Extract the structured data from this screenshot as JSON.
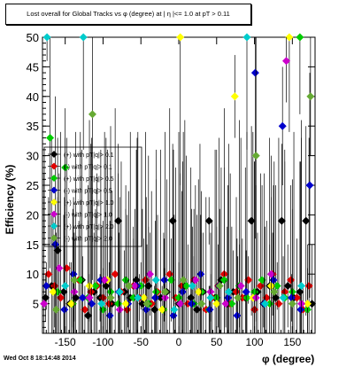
{
  "title": "Lost overall for Global Tracks vs φ (degree) at | η |<= 1.0 at pT > 0.11",
  "datestamp": "Wed Oct  8 18:14:48 2014",
  "chart_data": {
    "type": "scatter",
    "xlabel": "φ (degree)",
    "ylabel": "Efficiency (%)",
    "xlim": [
      -180,
      180
    ],
    "ylim": [
      0,
      50
    ],
    "x_ticks": [
      -150,
      -100,
      -50,
      0,
      50,
      100,
      150
    ],
    "y_ticks": [
      5,
      10,
      15,
      20,
      25,
      30,
      35,
      40,
      45,
      50
    ],
    "grid": false,
    "legend_position": "left-middle",
    "series": [
      {
        "name": "(+) with pT|q|> 0.1",
        "color": "#000000",
        "x": [
          -176,
          -168,
          -160,
          -152,
          -144,
          -136,
          -128,
          -120,
          -112,
          -104,
          -96,
          -88,
          -80,
          -72,
          -64,
          -56,
          -48,
          -40,
          -32,
          -24,
          -16,
          -8,
          0,
          8,
          16,
          24,
          32,
          40,
          48,
          56,
          64,
          72,
          80,
          88,
          96,
          104,
          112,
          120,
          128,
          136,
          144,
          152,
          160,
          168,
          176
        ],
        "values": [
          6,
          8,
          14,
          7,
          5,
          6,
          9,
          3,
          7,
          6,
          8,
          5,
          19,
          7,
          6,
          9,
          5,
          8,
          4,
          6,
          7,
          19,
          5,
          8,
          6,
          4,
          7,
          19,
          6,
          9,
          5,
          7,
          8,
          6,
          19,
          7,
          5,
          8,
          6,
          19,
          8,
          6,
          7,
          19,
          5
        ]
      },
      {
        "name": "(-) with pT|q|> 0.1",
        "color": "#e00000",
        "x": [
          -172,
          -164,
          -156,
          -148,
          -140,
          -132,
          -124,
          -116,
          -108,
          -100,
          -92,
          -84,
          -76,
          -68,
          -60,
          -52,
          -44,
          -36,
          -28,
          -20,
          -12,
          -4,
          4,
          12,
          20,
          28,
          36,
          44,
          52,
          60,
          68,
          76,
          84,
          92,
          100,
          108,
          116,
          124,
          132,
          140,
          148,
          156,
          164,
          172
        ],
        "values": [
          10,
          8,
          6,
          11,
          5,
          9,
          4,
          7,
          8,
          6,
          5,
          10,
          7,
          4,
          8,
          6,
          9,
          5,
          7,
          4,
          10,
          6,
          8,
          5,
          9,
          7,
          4,
          6,
          8,
          10,
          5,
          7,
          6,
          9,
          4,
          8,
          6,
          10,
          5,
          7,
          9,
          6,
          4,
          8
        ]
      },
      {
        "name": "(+) with pT|q|> 0.5",
        "color": "#00cc00",
        "x": [
          -170,
          -160,
          -150,
          -140,
          -130,
          -120,
          -110,
          -100,
          -90,
          -80,
          -70,
          -60,
          -50,
          -40,
          -30,
          -20,
          -10,
          0,
          10,
          20,
          30,
          40,
          50,
          60,
          70,
          80,
          90,
          100,
          110,
          120,
          130,
          140,
          150,
          160,
          170
        ],
        "values": [
          33,
          7,
          28,
          5,
          9,
          6,
          8,
          4,
          7,
          5,
          9,
          6,
          8,
          5,
          7,
          4,
          9,
          6,
          8,
          5,
          7,
          4,
          6,
          9,
          5,
          8,
          6,
          7,
          9,
          5,
          8,
          6,
          7,
          50,
          4
        ]
      },
      {
        "name": "(-) with pT|q|> 0.5",
        "color": "#0000cc",
        "x": [
          -175,
          -163,
          -151,
          -139,
          -127,
          -115,
          -103,
          -91,
          -79,
          -67,
          -55,
          -43,
          -31,
          -19,
          -7,
          5,
          17,
          29,
          41,
          53,
          65,
          77,
          89,
          101,
          113,
          125,
          137,
          149,
          161,
          173
        ],
        "values": [
          8,
          15,
          4,
          10,
          6,
          5,
          9,
          3,
          7,
          5,
          8,
          4,
          6,
          9,
          3,
          7,
          5,
          10,
          4,
          8,
          6,
          3,
          7,
          44,
          5,
          9,
          35,
          6,
          4,
          25
        ]
      },
      {
        "name": "(+) with pT|q|> 1.0",
        "color": "#ffff00",
        "x": [
          -166,
          -142,
          -118,
          -94,
          -70,
          -46,
          -22,
          2,
          26,
          50,
          74,
          98,
          122,
          146,
          170
        ],
        "values": [
          7,
          5,
          8,
          9,
          5,
          6,
          4,
          50,
          7,
          5,
          40,
          6,
          8,
          50,
          5
        ]
      },
      {
        "name": "(-) with pT|q|> 1.0",
        "color": "#cc00cc",
        "x": [
          -178,
          -158,
          -138,
          -118,
          -98,
          -78,
          -58,
          -38,
          -18,
          2,
          22,
          42,
          62,
          82,
          102,
          122,
          142,
          162
        ],
        "values": [
          5,
          11,
          7,
          6,
          9,
          4,
          8,
          10,
          6,
          5,
          9,
          7,
          5,
          8,
          6,
          10,
          46,
          5
        ]
      },
      {
        "name": "(+) with pT|q|> 2.0",
        "color": "#00cccc",
        "x": [
          -174,
          -150,
          -126,
          -102,
          -78,
          -54,
          -30,
          -6,
          18,
          42,
          66,
          90,
          114,
          138,
          162
        ],
        "values": [
          50,
          8,
          50,
          5,
          7,
          6,
          9,
          4,
          8,
          6,
          7,
          50,
          5,
          6,
          8
        ]
      },
      {
        "name": "(-) with pT|q|> 2.0",
        "color": "#66aa33",
        "x": [
          -162,
          -138,
          -114,
          -90,
          -66,
          -42,
          -18,
          6,
          30,
          54,
          78,
          102,
          126,
          150,
          174
        ],
        "values": [
          4,
          9,
          37,
          6,
          8,
          5,
          7,
          9,
          5,
          8,
          6,
          30,
          7,
          5,
          40
        ]
      }
    ]
  }
}
